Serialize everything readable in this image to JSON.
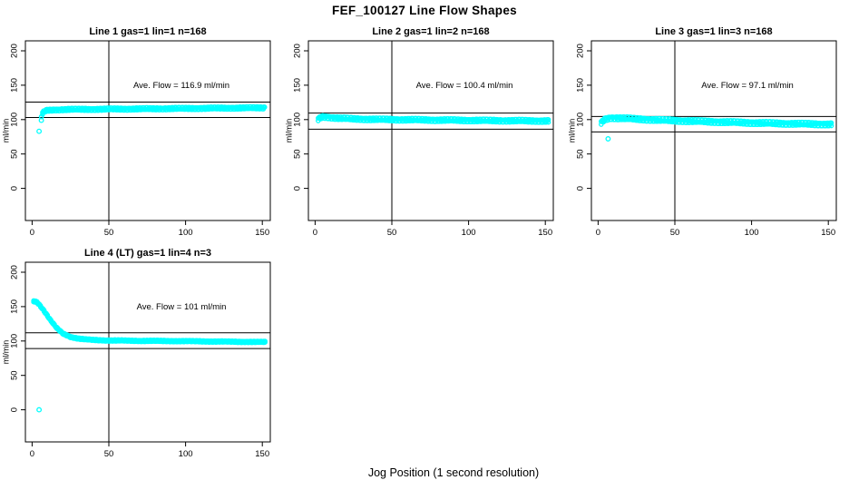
{
  "page_title": "FEF_100127  Line Flow Shapes",
  "xlabel": "Jog Position (1 second resolution)",
  "accent_color": "#00FFFF",
  "axes": {
    "x_ticks": [
      0,
      50,
      100,
      150
    ],
    "y_ticks": [
      0,
      50,
      100,
      150,
      200
    ],
    "ylabel": "ml/min",
    "xlim": [
      0,
      152
    ],
    "ylim": [
      0,
      200
    ],
    "grid": false
  },
  "chart_data": [
    {
      "type": "scatter",
      "title": "Line 1 gas=1 lin=1 n=168",
      "annotation": "Ave. Flow =  116.9  ml/min",
      "ave_flow": 116.9,
      "n": 168,
      "hlines": [
        125.5,
        103
      ],
      "vline": 50,
      "band_halfwidth": 1.8,
      "profile": [
        [
          6,
          105
        ],
        [
          7,
          110
        ],
        [
          8,
          112
        ],
        [
          10,
          113.5
        ],
        [
          15,
          114.3
        ],
        [
          25,
          114.8
        ],
        [
          40,
          115.0
        ],
        [
          60,
          115.4
        ],
        [
          80,
          115.8
        ],
        [
          100,
          116.2
        ],
        [
          120,
          116.6
        ],
        [
          152,
          117.2
        ]
      ],
      "outliers": [
        [
          6,
          99
        ],
        [
          4.5,
          83
        ]
      ]
    },
    {
      "type": "scatter",
      "title": "Line 2 gas=1 lin=2 n=168",
      "annotation": "Ave. Flow =  100.4  ml/min",
      "ave_flow": 100.4,
      "n": 168,
      "hlines": [
        109.5,
        86
      ],
      "vline": 50,
      "band_halfwidth": 2.2,
      "profile": [
        [
          2,
          100
        ],
        [
          3,
          102.5
        ],
        [
          5,
          104
        ],
        [
          8,
          103.5
        ],
        [
          15,
          102
        ],
        [
          25,
          101
        ],
        [
          40,
          100.3
        ],
        [
          60,
          99.8
        ],
        [
          80,
          99.3
        ],
        [
          100,
          98.9
        ],
        [
          120,
          98.5
        ],
        [
          152,
          98
        ]
      ],
      "outliers": []
    },
    {
      "type": "scatter",
      "title": "Line 3 gas=1 lin=3 n=168",
      "annotation": "Ave. Flow =  97.1  ml/min",
      "ave_flow": 97.1,
      "n": 168,
      "hlines": [
        104.5,
        82
      ],
      "vline": 50,
      "band_halfwidth": 2.5,
      "profile": [
        [
          2,
          95
        ],
        [
          4,
          100
        ],
        [
          8,
          102.5
        ],
        [
          15,
          102
        ],
        [
          25,
          100.8
        ],
        [
          40,
          99.3
        ],
        [
          60,
          97.8
        ],
        [
          80,
          96.5
        ],
        [
          100,
          95.3
        ],
        [
          120,
          94.3
        ],
        [
          152,
          93
        ]
      ],
      "outliers": [
        [
          6.5,
          72
        ]
      ]
    },
    {
      "type": "scatter",
      "title": "Line 4 (LT) gas=1 lin=4 n=3",
      "annotation": "Ave. Flow =  101  ml/min",
      "ave_flow": 101,
      "n": 3,
      "hlines": [
        112,
        89
      ],
      "vline": 50,
      "band_halfwidth": 1.2,
      "profile": [
        [
          1,
          158
        ],
        [
          3,
          157
        ],
        [
          5,
          152
        ],
        [
          8,
          143
        ],
        [
          12,
          130
        ],
        [
          16,
          119
        ],
        [
          20,
          111
        ],
        [
          25,
          106
        ],
        [
          30,
          103.5
        ],
        [
          35,
          102.3
        ],
        [
          40,
          101.5
        ],
        [
          50,
          100.8
        ],
        [
          70,
          100.3
        ],
        [
          100,
          99.8
        ],
        [
          130,
          99
        ],
        [
          152,
          98.5
        ]
      ],
      "outliers": [
        [
          4.5,
          0
        ]
      ]
    }
  ]
}
